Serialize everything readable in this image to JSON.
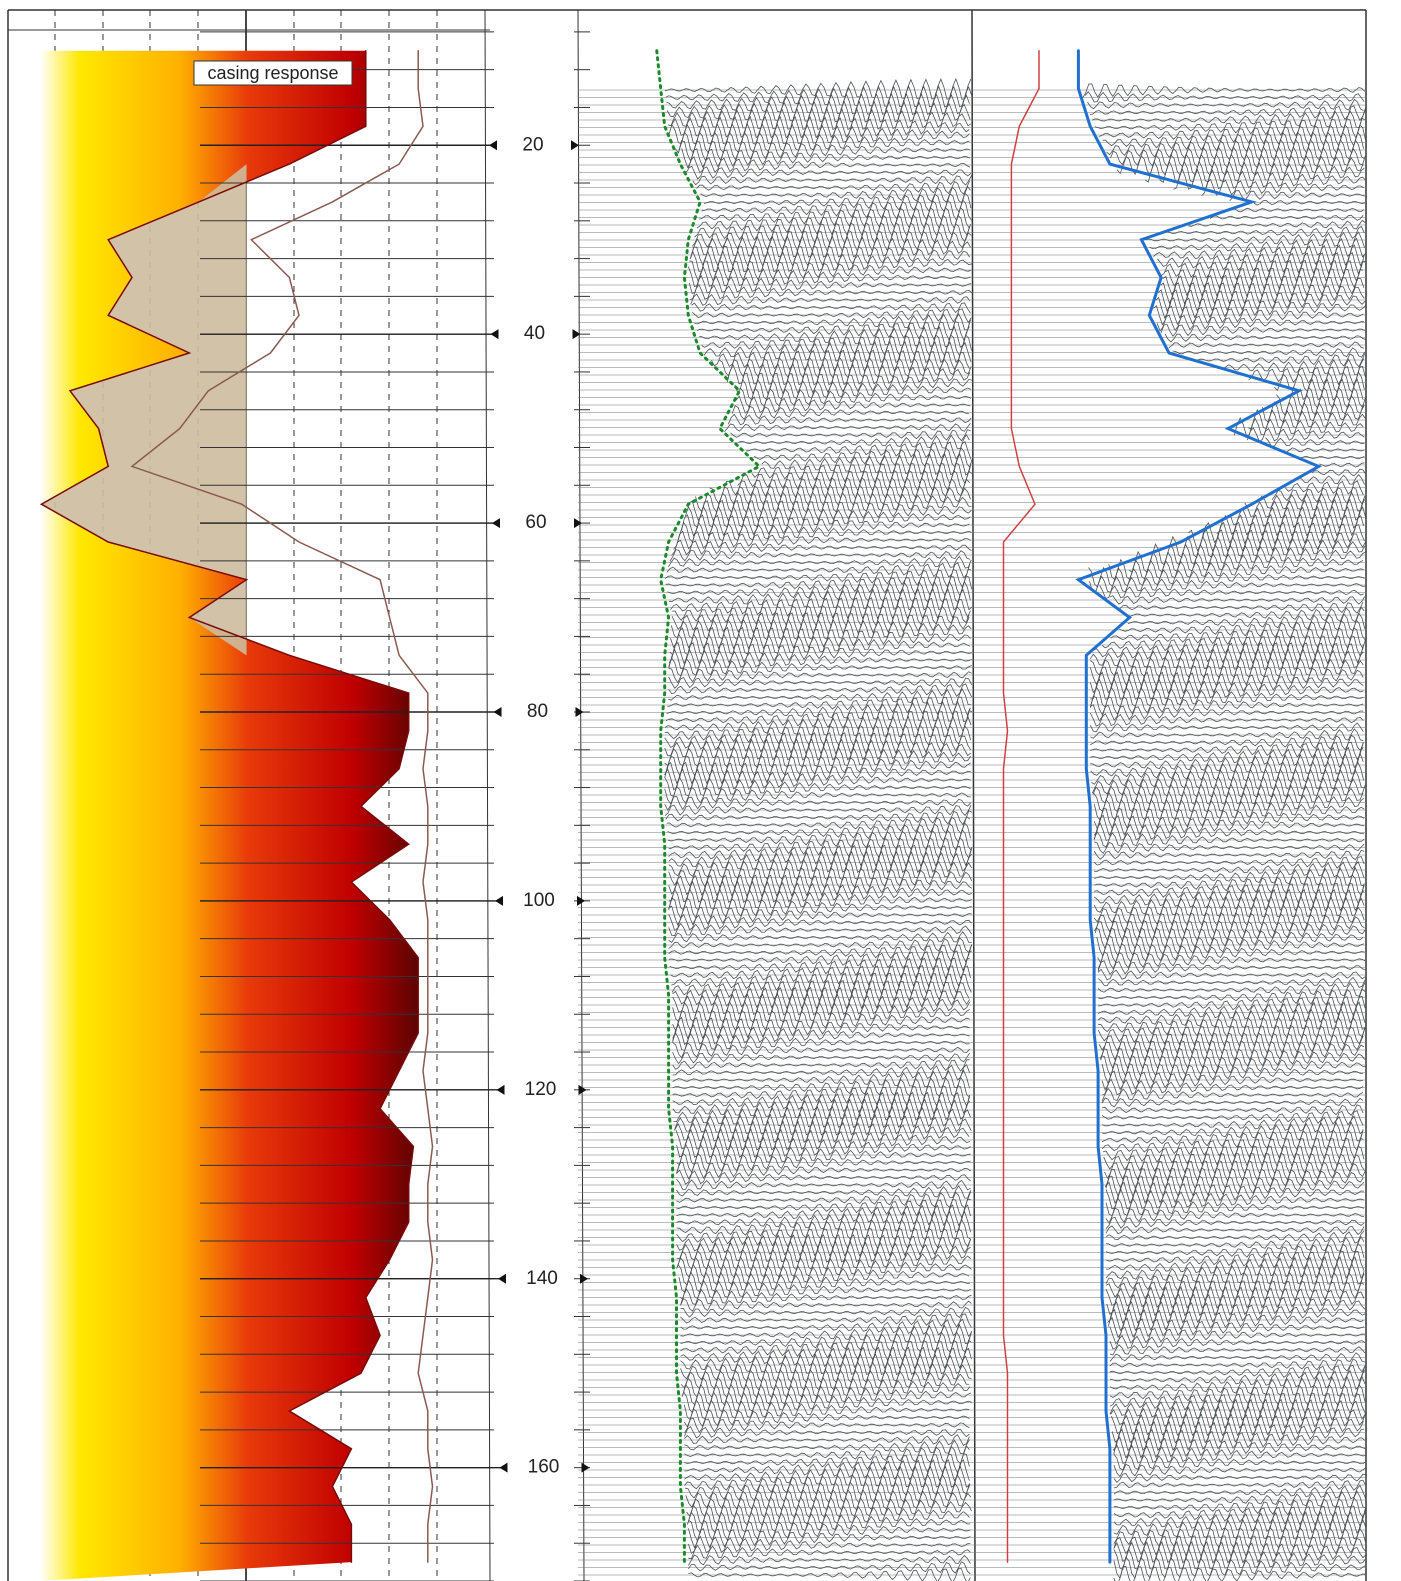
{
  "chart_data": {
    "type": "well-log",
    "annotation": "casing response",
    "ylim": [
      6,
      172
    ],
    "yticks": [
      20,
      40,
      60,
      80,
      100,
      120,
      140,
      160
    ],
    "xlim": [
      0,
      100
    ],
    "grid": true,
    "depth": [
      10,
      14,
      18,
      22,
      26,
      30,
      34,
      38,
      42,
      46,
      50,
      54,
      58,
      62,
      66,
      70,
      74,
      78,
      82,
      86,
      90,
      94,
      98,
      102,
      106,
      110,
      114,
      118,
      122,
      126,
      130,
      134,
      138,
      142,
      146,
      150,
      154,
      158,
      162,
      166,
      170
    ],
    "series": [
      {
        "track": 1,
        "fill": true,
        "color": "#7a0a0a",
        "values": [
          75,
          75,
          75,
          59,
          40,
          21,
          26,
          21,
          38,
          13,
          19,
          21,
          7,
          21,
          50,
          38,
          59,
          84,
          84,
          82,
          74,
          84,
          72,
          80,
          86,
          86,
          86,
          82,
          78,
          85,
          84,
          84,
          80,
          75,
          78,
          74,
          59,
          72,
          68,
          72,
          72
        ]
      },
      {
        "track": 1,
        "fill": false,
        "color": "#8a5a50",
        "values": [
          86,
          86,
          87,
          82,
          68,
          51,
          59,
          61,
          55,
          42,
          36,
          26,
          49,
          61,
          78,
          80,
          82,
          88,
          88,
          87,
          88,
          88,
          87,
          88,
          88,
          88,
          88,
          87,
          88,
          89,
          88,
          88,
          89,
          88,
          87,
          86,
          88,
          88,
          89,
          88,
          88
        ]
      },
      {
        "track": 2,
        "fill": false,
        "color": "#1a8a2a",
        "dotted": true,
        "values": [
          20,
          21,
          22,
          26,
          31,
          28,
          27,
          28,
          31,
          41,
          36,
          46,
          28,
          23,
          21,
          23,
          22,
          22,
          21,
          21,
          21,
          22,
          22,
          22,
          22,
          23,
          23,
          23,
          23,
          24,
          24,
          24,
          24,
          25,
          25,
          25,
          26,
          26,
          26,
          27,
          27
        ]
      },
      {
        "track": 3,
        "fill": false,
        "color": "#d04040",
        "values": [
          17,
          17,
          12,
          10,
          10,
          10,
          10,
          10,
          10,
          10,
          10,
          12,
          16,
          8,
          8,
          8,
          8,
          8,
          9,
          8,
          8,
          8,
          8,
          8,
          8,
          8,
          8,
          8,
          8,
          8,
          8,
          8,
          8,
          8,
          8,
          9,
          9,
          9,
          9,
          9,
          9
        ]
      },
      {
        "track": 3,
        "fill": false,
        "color": "#2070d0",
        "width": 3,
        "values": [
          27,
          27,
          30,
          35,
          71,
          43,
          48,
          45,
          50,
          83,
          65,
          88,
          71,
          53,
          27,
          40,
          29,
          29,
          29,
          29,
          30,
          30,
          30,
          30,
          31,
          31,
          31,
          32,
          32,
          32,
          33,
          33,
          33,
          33,
          34,
          34,
          34,
          35,
          35,
          35,
          35
        ]
      }
    ]
  }
}
